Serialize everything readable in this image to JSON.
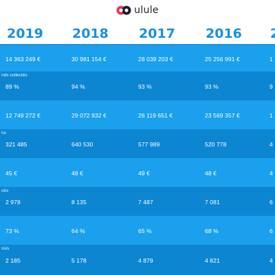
{
  "brand": {
    "name": "ulule"
  },
  "years": [
    "2019",
    "2018",
    "2017",
    "2016",
    "2"
  ],
  "rows": [
    {
      "label": "",
      "shade": "light",
      "values": [
        "14 363 249 €",
        "30 981 154 €",
        "28 039 203 €",
        "25 256 991 €",
        "1"
      ]
    },
    {
      "label": "nds collectés",
      "shade": "dark",
      "values": [
        "89 %",
        "94 %",
        "93 %",
        "93 %",
        "9"
      ]
    },
    {
      "label": "",
      "shade": "light",
      "values": [
        "12 749 272 €",
        "29 072 932 €",
        "26 119 651 €",
        "23 569 357 €",
        "1"
      ]
    },
    {
      "label": "ns",
      "shade": "dark",
      "values": [
        "321 485",
        "640 530",
        "577 989",
        "520 778",
        "4"
      ]
    },
    {
      "label": "",
      "shade": "light",
      "values": [
        "45 €",
        "48 €",
        "49 €",
        "48 €",
        "4"
      ]
    },
    {
      "label": "cès",
      "shade": "dark",
      "values": [
        "2 978",
        "8 135",
        "7 487",
        "7 081",
        "6"
      ]
    },
    {
      "label": "",
      "shade": "light",
      "values": [
        "73 %",
        "64 %",
        "65 %",
        "68 %",
        "6"
      ]
    },
    {
      "label": "ssis",
      "shade": "dark",
      "values": [
        "2 185",
        "5 178",
        "4 879",
        "4 821",
        "4"
      ]
    }
  ]
}
